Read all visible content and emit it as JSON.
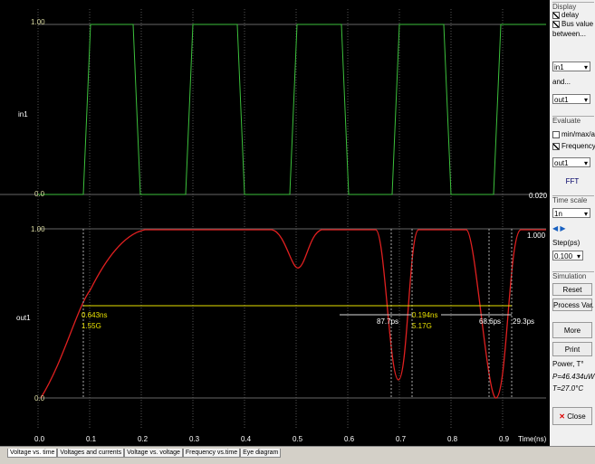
{
  "plot": {
    "top_trace": {
      "label": "in1",
      "y_high": "1.00",
      "y_low": "0.0",
      "right_value": "0.020"
    },
    "bottom_trace": {
      "label": "out1",
      "y_high": "1.00",
      "y_low": "0.0",
      "right_value": "1.000"
    },
    "x_axis": {
      "ticks": [
        "0.0",
        "0.1",
        "0.2",
        "0.3",
        "0.4",
        "0.5",
        "0.6",
        "0.7",
        "0.8",
        "0.9"
      ],
      "unit": "Time(ns)"
    },
    "measurements": {
      "delay_1": "0.643ns",
      "freq_1": "1.55G",
      "delay_2": "87.7ps",
      "delay_3": "0.194ns",
      "freq_2": "5.17G",
      "delay_4": "68.6ps",
      "delay_5": "29.3ps"
    }
  },
  "panel": {
    "display": {
      "title": "Display",
      "delay": "delay",
      "bus_value": "Bus value",
      "between": "between...",
      "select_1": "in1",
      "and": "and...",
      "select_2": "out1"
    },
    "evaluate": {
      "title": "Evaluate",
      "minmax": "min/max/av",
      "frequency": "Frequency",
      "select": "out1",
      "fft": "FFT"
    },
    "time_scale": {
      "title": "Time scale",
      "select": "1n",
      "step_label": "Step(ps)",
      "step_value": "0.100"
    },
    "simulation": {
      "title": "Simulation",
      "reset": "Reset",
      "process_var": "Process Var.",
      "more": "More",
      "print": "Print"
    },
    "power": {
      "title": "Power, T°",
      "p": "P=46.434uW",
      "t": "T=27.0°C"
    },
    "close": "Close"
  },
  "tabs": [
    "Voltage vs. time",
    "Voltages and currents",
    "Voltage vs. voltage",
    "Frequency vs.time",
    "Eye diagram"
  ]
}
